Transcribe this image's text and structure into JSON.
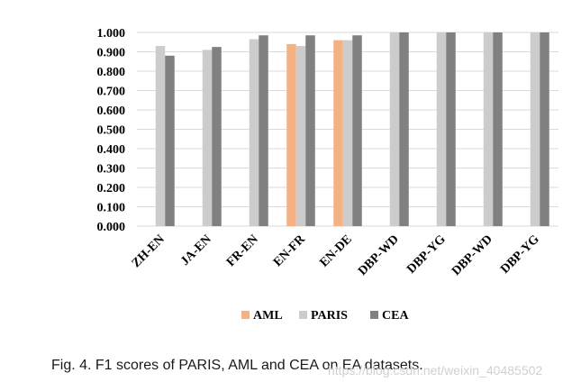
{
  "chart_data": {
    "type": "bar",
    "title": "",
    "xlabel": "",
    "ylabel": "",
    "ylim": [
      0,
      1.0
    ],
    "yticks": [
      "0.000",
      "0.100",
      "0.200",
      "0.300",
      "0.400",
      "0.500",
      "0.600",
      "0.700",
      "0.800",
      "0.900",
      "1.000"
    ],
    "categories": [
      "ZH-EN",
      "JA-EN",
      "FR-EN",
      "EN-FR",
      "EN-DE",
      "DBP-WD",
      "DBP-YG",
      "DBP-WD",
      "DBP-YG"
    ],
    "series": [
      {
        "name": "AML",
        "color": "#f4b183",
        "values": [
          null,
          null,
          null,
          0.94,
          0.96,
          null,
          null,
          null,
          null
        ]
      },
      {
        "name": "PARIS",
        "color": "#cccccc",
        "values": [
          0.93,
          0.91,
          0.965,
          0.93,
          0.96,
          1.0,
          1.0,
          1.0,
          1.0
        ]
      },
      {
        "name": "CEA",
        "color": "#808080",
        "values": [
          0.88,
          0.925,
          0.985,
          0.985,
          0.985,
          1.0,
          1.0,
          1.0,
          1.0
        ]
      }
    ],
    "legend_position": "bottom"
  },
  "caption": "Fig. 4. F1 scores of PARIS, AML and CEA on EA datasets.",
  "watermark": "https://blog.csdn.net/weixin_40485502"
}
